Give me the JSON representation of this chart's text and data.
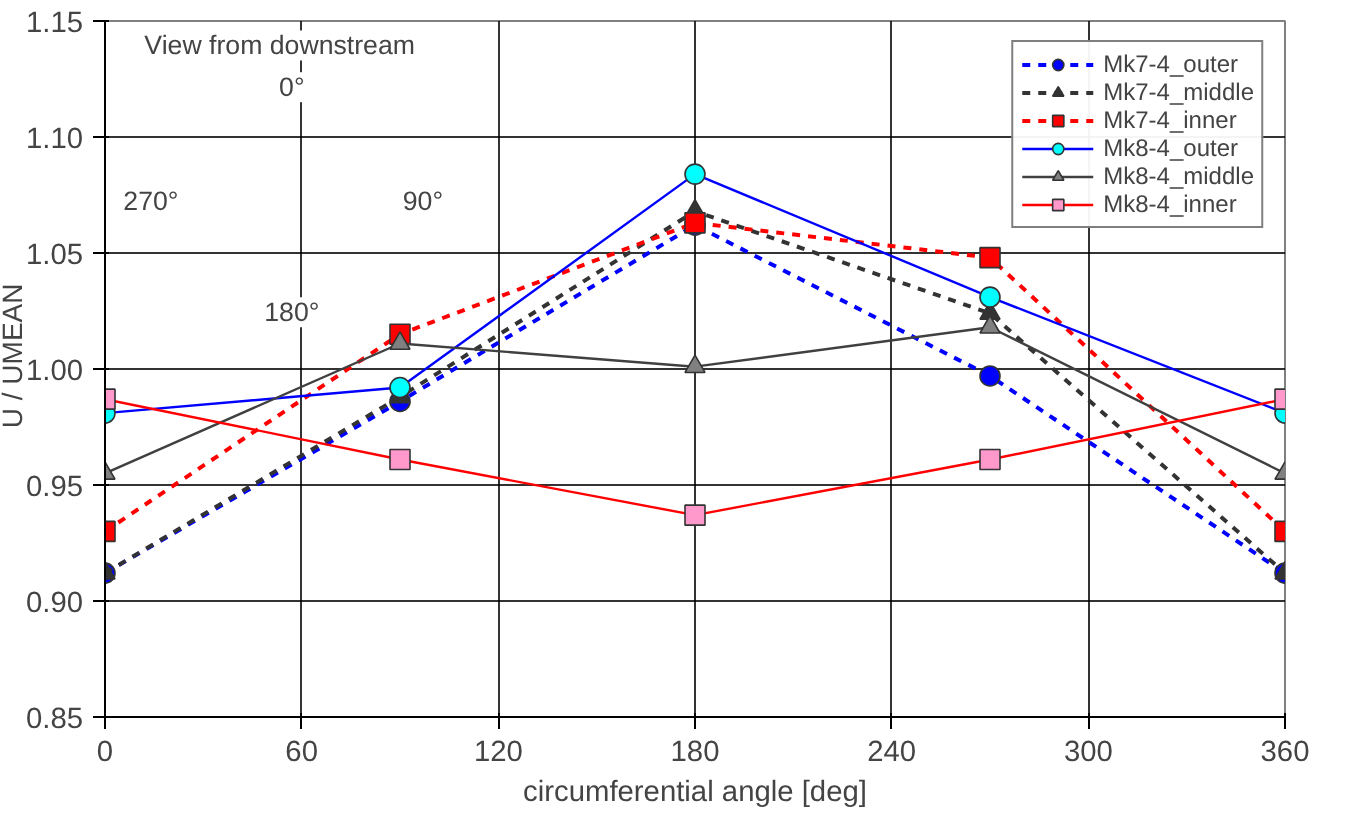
{
  "chart_data": {
    "type": "line",
    "xlabel": "circumferential angle [deg]",
    "ylabel": "U / UMEAN",
    "x": [
      0,
      90,
      180,
      270,
      360
    ],
    "series": [
      {
        "name": "Mk7-4_outer",
        "color": "#0000ff",
        "colors": [
          "#0000ff",
          "#0000ff",
          "#0000ff",
          "#0000ff",
          "#0000ff"
        ],
        "marker": "circle",
        "line_style": "dashed",
        "values": [
          0.912,
          0.986,
          1.062,
          0.997,
          0.912
        ]
      },
      {
        "name": "Mk7-4_middle",
        "color": "#333333",
        "colors": [
          "#333333",
          "#333333",
          "#333333",
          "#333333",
          "#333333"
        ],
        "marker": "triangle",
        "line_style": "dashed",
        "values": [
          0.912,
          0.988,
          1.068,
          1.024,
          0.912
        ]
      },
      {
        "name": "Mk7-4_inner",
        "color": "#ff0000",
        "colors": [
          "#ff0000",
          "#ff0000",
          "#ff0000",
          "#ff0000",
          "#ff0000"
        ],
        "marker": "square",
        "line_style": "dashed",
        "values": [
          0.93,
          1.015,
          1.063,
          1.048,
          0.93
        ]
      },
      {
        "name": "Mk8-4_outer",
        "color": "#0000ff",
        "colors": [
          "#00ffff",
          "#00ffff",
          "#00ffff",
          "#00ffff",
          "#00ffff"
        ],
        "marker": "circle",
        "line_style": "solid",
        "values": [
          0.981,
          0.992,
          1.084,
          1.031,
          0.981
        ]
      },
      {
        "name": "Mk8-4_middle",
        "color": "#404040",
        "colors": [
          "#808080",
          "#808080",
          "#808080",
          "#808080",
          "#808080"
        ],
        "marker": "triangle",
        "line_style": "solid",
        "values": [
          0.955,
          1.011,
          1.001,
          1.018,
          0.955
        ]
      },
      {
        "name": "Mk8-4_inner",
        "color": "#ff0000",
        "colors": [
          "#ff99cc",
          "#ff99cc",
          "#ff99cc",
          "#ff99cc",
          "#ff99cc"
        ],
        "marker": "square",
        "line_style": "solid",
        "values": [
          0.987,
          0.961,
          0.937,
          0.961,
          0.987
        ]
      }
    ],
    "xlim": [
      0,
      360
    ],
    "xticks": [
      0,
      60,
      120,
      180,
      240,
      300,
      360
    ],
    "ylim": [
      0.85,
      1.15
    ],
    "yticks": [
      {
        "value": 0.85,
        "label": "0.85"
      },
      {
        "value": 0.9,
        "label": "0.90"
      },
      {
        "value": 0.95,
        "label": "0.95"
      },
      {
        "value": 1.0,
        "label": "1.00"
      },
      {
        "value": 1.05,
        "label": "1.05"
      },
      {
        "value": 1.1,
        "label": "1.10"
      },
      {
        "value": 1.15,
        "label": "1.15"
      }
    ],
    "grid": true,
    "legend": "top right",
    "annotations": [
      "View from downstream",
      "0°",
      "90°",
      "180°",
      "270°"
    ]
  }
}
